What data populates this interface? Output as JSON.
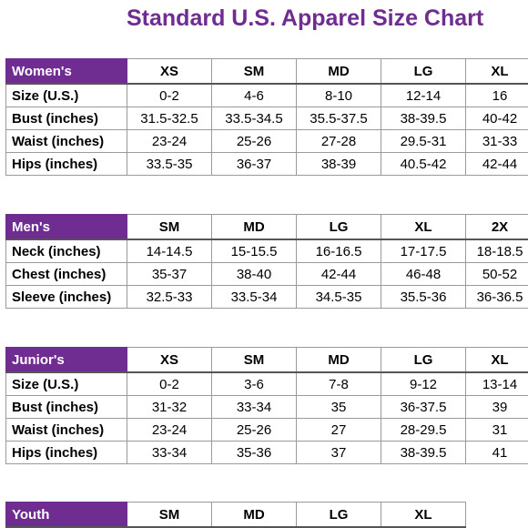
{
  "title": "Standard U.S. Apparel Size Chart",
  "colors": {
    "accent": "#6f2c91",
    "border": "#9a9a9a"
  },
  "women": {
    "label": "Women's",
    "sizes": [
      "XS",
      "SM",
      "MD",
      "LG",
      "XL"
    ],
    "rows": [
      {
        "label": "Size (U.S.)",
        "values": [
          "0-2",
          "4-6",
          "8-10",
          "12-14",
          "16"
        ]
      },
      {
        "label": "Bust (inches)",
        "values": [
          "31.5-32.5",
          "33.5-34.5",
          "35.5-37.5",
          "38-39.5",
          "40-42"
        ]
      },
      {
        "label": "Waist (inches)",
        "values": [
          "23-24",
          "25-26",
          "27-28",
          "29.5-31",
          "31-33"
        ]
      },
      {
        "label": "Hips (inches)",
        "values": [
          "33.5-35",
          "36-37",
          "38-39",
          "40.5-42",
          "42-44"
        ]
      }
    ]
  },
  "men": {
    "label": "Men's",
    "sizes": [
      "SM",
      "MD",
      "LG",
      "XL",
      "2X"
    ],
    "rows": [
      {
        "label": "Neck (inches)",
        "values": [
          "14-14.5",
          "15-15.5",
          "16-16.5",
          "17-17.5",
          "18-18.5"
        ]
      },
      {
        "label": "Chest (inches)",
        "values": [
          "35-37",
          "38-40",
          "42-44",
          "46-48",
          "50-52"
        ]
      },
      {
        "label": "Sleeve (inches)",
        "values": [
          "32.5-33",
          "33.5-34",
          "34.5-35",
          "35.5-36",
          "36-36.5"
        ]
      }
    ]
  },
  "junior": {
    "label": "Junior's",
    "sizes": [
      "XS",
      "SM",
      "MD",
      "LG",
      "XL"
    ],
    "rows": [
      {
        "label": "Size (U.S.)",
        "values": [
          "0-2",
          "3-6",
          "7-8",
          "9-12",
          "13-14"
        ]
      },
      {
        "label": "Bust (inches)",
        "values": [
          "31-32",
          "33-34",
          "35",
          "36-37.5",
          "39"
        ]
      },
      {
        "label": "Waist (inches)",
        "values": [
          "23-24",
          "25-26",
          "27",
          "28-29.5",
          "31"
        ]
      },
      {
        "label": "Hips (inches)",
        "values": [
          "33-34",
          "35-36",
          "37",
          "38-39.5",
          "41"
        ]
      }
    ]
  },
  "youth": {
    "label": "Youth",
    "sizes": [
      "SM",
      "MD",
      "LG",
      "XL"
    ],
    "rows": []
  }
}
